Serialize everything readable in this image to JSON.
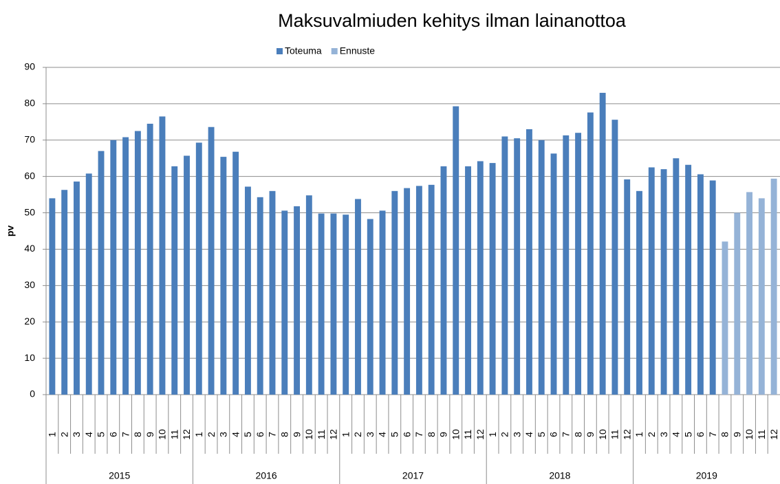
{
  "chart_data": {
    "type": "bar",
    "title": "Maksuvalmiuden kehitys ilman lainanottoa",
    "y_label": "pv",
    "category_groups": [
      {
        "label": "2015",
        "categories": [
          "1",
          "2",
          "3",
          "4",
          "5",
          "6",
          "7",
          "8",
          "9",
          "10",
          "11",
          "12"
        ]
      },
      {
        "label": "2016",
        "categories": [
          "1",
          "2",
          "3",
          "4",
          "5",
          "6",
          "7",
          "8",
          "9",
          "10",
          "11",
          "12"
        ]
      },
      {
        "label": "2017",
        "categories": [
          "1",
          "2",
          "3",
          "4",
          "5",
          "6",
          "7",
          "8",
          "9",
          "10",
          "11",
          "12"
        ]
      },
      {
        "label": "2018",
        "categories": [
          "1",
          "2",
          "3",
          "4",
          "5",
          "6",
          "7",
          "8",
          "9",
          "10",
          "11",
          "12"
        ]
      },
      {
        "label": "2019",
        "categories": [
          "1",
          "2",
          "3",
          "4",
          "5",
          "6",
          "7",
          "8",
          "9",
          "10",
          "11",
          "12"
        ]
      }
    ],
    "series": [
      {
        "name": "Toteuma",
        "color": "#4a7ebb",
        "values": [
          54,
          56.3,
          58.6,
          60.8,
          67,
          70,
          70.8,
          72.5,
          74.5,
          76.5,
          62.8,
          65.7,
          69.3,
          73.6,
          65.4,
          66.8,
          57.2,
          54.3,
          56,
          50.6,
          51.8,
          54.8,
          49.8,
          49.8,
          49.5,
          53.8,
          48.3,
          50.6,
          56,
          56.8,
          57.4,
          57.7,
          62.8,
          79.3,
          62.8,
          64.2,
          63.7,
          71,
          70.5,
          73,
          70,
          66.3,
          71.3,
          72,
          77.6,
          83,
          75.6,
          59.2,
          56,
          62.5,
          62,
          65,
          63.2,
          60.6,
          58.9,
          null,
          null,
          null,
          null,
          null
        ]
      },
      {
        "name": "Ennuste",
        "color": "#95b3d7",
        "values": [
          null,
          null,
          null,
          null,
          null,
          null,
          null,
          null,
          null,
          null,
          null,
          null,
          null,
          null,
          null,
          null,
          null,
          null,
          null,
          null,
          null,
          null,
          null,
          null,
          null,
          null,
          null,
          null,
          null,
          null,
          null,
          null,
          null,
          null,
          null,
          null,
          null,
          null,
          null,
          null,
          null,
          null,
          null,
          null,
          null,
          null,
          null,
          null,
          null,
          null,
          null,
          null,
          null,
          null,
          null,
          42.1,
          50,
          55.7,
          54,
          59.4
        ]
      }
    ],
    "ylim": [
      0,
      90
    ],
    "yticks": [
      0,
      10,
      20,
      30,
      40,
      50,
      60,
      70,
      80,
      90
    ],
    "grid": true,
    "legend": "top"
  }
}
